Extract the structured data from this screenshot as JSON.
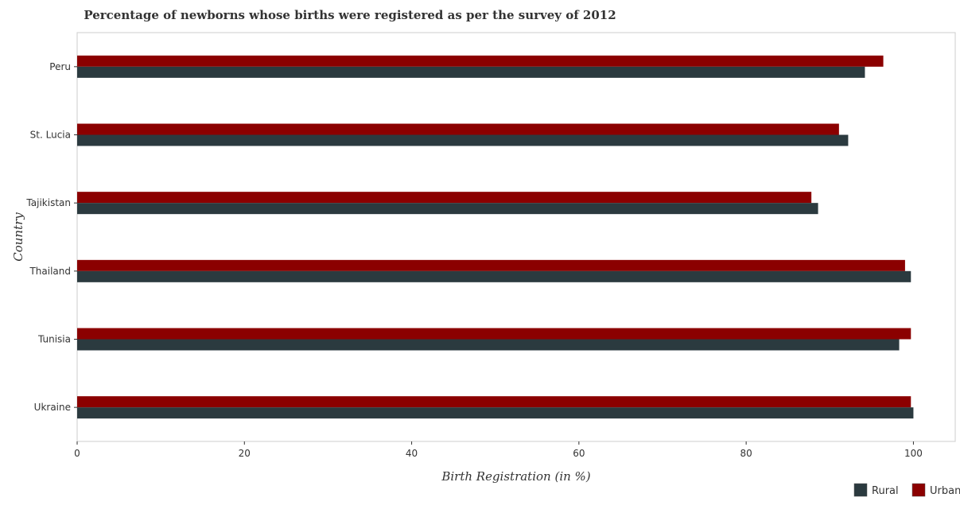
{
  "chart_data": {
    "type": "bar",
    "orientation": "horizontal",
    "title": "Percentage of newborns whose births were registered as per the survey of 2012",
    "xlabel": "Birth Registration (in %)",
    "ylabel": "Country",
    "categories": [
      "Peru",
      "St. Lucia",
      "Tajikistan",
      "Thailand",
      "Tunisia",
      "Ukraine"
    ],
    "series": [
      {
        "name": "Rural",
        "color": "#2b3a3f",
        "values": [
          94.2,
          92.2,
          88.6,
          99.7,
          98.3,
          100.0
        ]
      },
      {
        "name": "Urban",
        "color": "#8b0000",
        "values": [
          96.4,
          91.1,
          87.8,
          99.0,
          99.7,
          99.7
        ]
      }
    ],
    "xlim": [
      0,
      105
    ],
    "xticks": [
      0,
      20,
      40,
      60,
      80,
      100
    ],
    "xtick_labels": [
      "0",
      "20",
      "40",
      "60",
      "80",
      "100"
    ],
    "grid": false,
    "legend_position": "bottom-right"
  }
}
